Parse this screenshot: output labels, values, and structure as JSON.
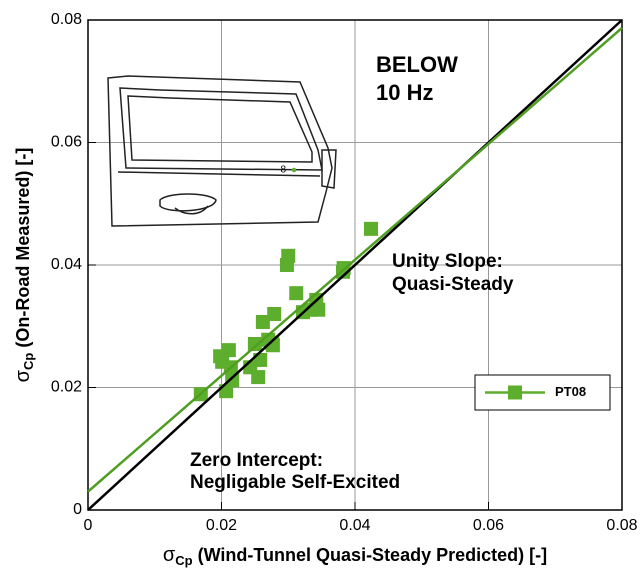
{
  "chart_data": {
    "type": "scatter",
    "x_label": {
      "symbol": "σ",
      "sub": "Cp",
      "text": " (Wind-Tunnel Quasi-Steady Predicted) [-]"
    },
    "y_label": {
      "symbol": "σ",
      "sub": "Cp",
      "text": " (On-Road Measured) [-]"
    },
    "annotations": [
      "BELOW",
      "10 Hz",
      "Unity Slope:",
      "Quasi-Steady",
      "Zero Intercept:",
      "Negligable Self-Excited"
    ],
    "inset_label": "8",
    "xlim": [
      0,
      0.08
    ],
    "ylim": [
      0,
      0.08
    ],
    "xticks": [
      0,
      0.02,
      0.04,
      0.06,
      0.08
    ],
    "yticks": [
      0,
      0.02,
      0.04,
      0.06,
      0.08
    ],
    "grid": true,
    "legend_position": "right",
    "series": [
      {
        "name": "PT08",
        "color": "#5cae2c",
        "x": [
          0.0169,
          0.0198,
          0.0201,
          0.0207,
          0.0211,
          0.0214,
          0.0216,
          0.0243,
          0.025,
          0.0255,
          0.0258,
          0.0262,
          0.027,
          0.0276,
          0.0277,
          0.0279,
          0.0298,
          0.03,
          0.0312,
          0.0322,
          0.0333,
          0.0342,
          0.0345,
          0.0382,
          0.0383,
          0.0424
        ],
        "values": [
          0.0189,
          0.0251,
          0.0242,
          0.0194,
          0.0261,
          0.0233,
          0.0212,
          0.0233,
          0.0271,
          0.0217,
          0.0245,
          0.0307,
          0.0278,
          0.0273,
          0.0269,
          0.032,
          0.04,
          0.0415,
          0.0354,
          0.0323,
          0.0327,
          0.0343,
          0.0327,
          0.0389,
          0.0395,
          0.0459
        ]
      }
    ],
    "lines": [
      {
        "color": "#000000",
        "x": [
          0,
          0.08
        ],
        "values": [
          0,
          0.08
        ]
      },
      {
        "color": "#4f9e22",
        "x": [
          0,
          0.08
        ],
        "values": [
          0.003,
          0.0787
        ]
      }
    ]
  }
}
